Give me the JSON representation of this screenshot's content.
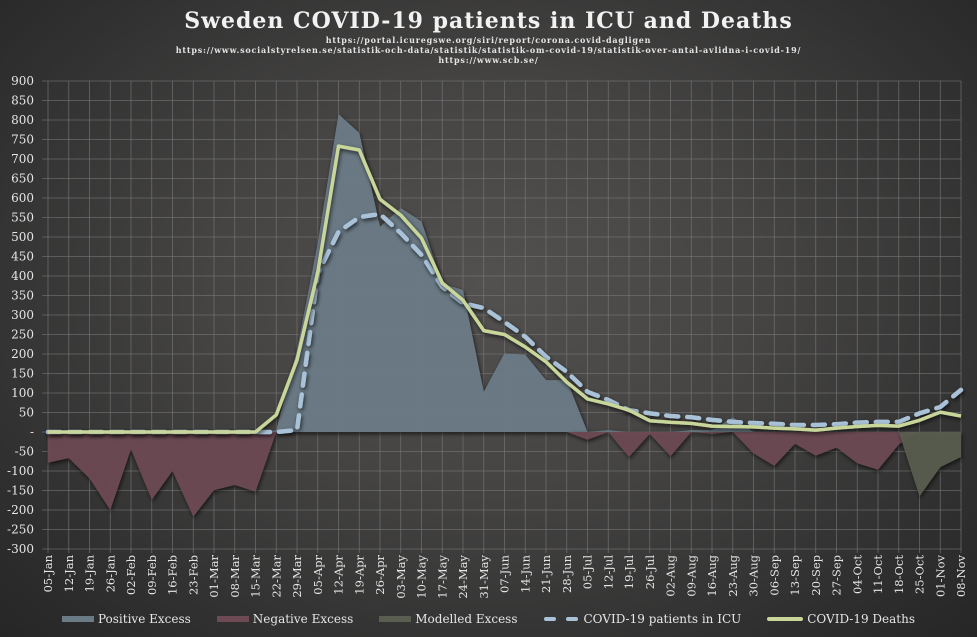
{
  "title": "Sweden COVID-19 patients in ICU and Deaths",
  "sources": [
    "https://portal.icuregswe.org/siri/report/corona.covid-dagligen",
    "https://www.socialstyrelsen.se/statistik-och-data/statistik/statistik-om-covid-19/statistik-over-antal-avlidna-i-covid-19/",
    "https://www.scb.se/"
  ],
  "colors": {
    "positive": "#6b7b86",
    "negative": "#6e4a55",
    "modelled": "#5a5e50",
    "icu": "#a9c2d8",
    "deaths": "#c8d69a",
    "grid": "#7a7a7a"
  },
  "chart_data": {
    "type": "area",
    "title": "Sweden COVID-19 patients in ICU and Deaths",
    "xlabel": "",
    "ylabel": "",
    "ylim": [
      -300,
      900
    ],
    "grid": true,
    "legend_position": "bottom",
    "y_ticks": [
      "900",
      "850",
      "800",
      "750",
      "700",
      "650",
      "600",
      "550",
      "500",
      "450",
      "400",
      "350",
      "300",
      "250",
      "200",
      "150",
      "100",
      "50",
      "-",
      "-50",
      "-100",
      "-150",
      "-200",
      "-250",
      "-300"
    ],
    "y_tick_values": [
      900,
      850,
      800,
      750,
      700,
      650,
      600,
      550,
      500,
      450,
      400,
      350,
      300,
      250,
      200,
      150,
      100,
      50,
      0,
      -50,
      -100,
      -150,
      -200,
      -250,
      -300
    ],
    "categories": [
      "05-Jan",
      "12-Jan",
      "19-Jan",
      "26-Jan",
      "02-Feb",
      "09-Feb",
      "16-Feb",
      "23-Feb",
      "01-Mar",
      "08-Mar",
      "15-Mar",
      "22-Mar",
      "29-Mar",
      "05-Apr",
      "12-Apr",
      "19-Apr",
      "26-Apr",
      "03-May",
      "10-May",
      "17-May",
      "24-May",
      "31-May",
      "07-Jun",
      "14-Jun",
      "21-Jun",
      "28-Jun",
      "05-Jul",
      "12-Jul",
      "19-Jul",
      "26-Jul",
      "02-Aug",
      "09-Aug",
      "16-Aug",
      "23-Aug",
      "30-Aug",
      "06-Sep",
      "13-Sep",
      "20-Sep",
      "27-Sep",
      "04-Oct",
      "11-Oct",
      "18-Oct",
      "25-Oct",
      "01-Nov",
      "08-Nov"
    ],
    "series": [
      {
        "name": "Positive Excess",
        "kind": "area",
        "values": [
          0,
          0,
          0,
          0,
          0,
          0,
          0,
          0,
          0,
          0,
          0,
          5,
          210,
          485,
          815,
          767,
          526,
          574,
          540,
          380,
          364,
          103,
          202,
          198,
          133,
          133,
          0,
          5,
          0,
          0,
          0,
          5,
          5,
          38,
          0,
          0,
          0,
          0,
          0,
          0,
          0,
          0,
          0,
          0,
          0
        ]
      },
      {
        "name": "Negative Excess",
        "kind": "area",
        "values": [
          -79,
          -67,
          -119,
          -200,
          -44,
          -174,
          -100,
          -217,
          -149,
          -136,
          -153,
          0,
          0,
          0,
          0,
          0,
          0,
          0,
          0,
          0,
          0,
          0,
          0,
          0,
          0,
          0,
          -20,
          0,
          -64,
          -5,
          -62,
          0,
          -5,
          0,
          -55,
          -87,
          -30,
          -61,
          -40,
          -80,
          -97,
          -32,
          0,
          0,
          0
        ]
      },
      {
        "name": "Modelled Excess",
        "kind": "area",
        "values": [
          0,
          0,
          0,
          0,
          0,
          0,
          0,
          0,
          0,
          0,
          0,
          0,
          0,
          0,
          0,
          0,
          0,
          0,
          0,
          0,
          0,
          0,
          0,
          0,
          0,
          0,
          0,
          0,
          0,
          0,
          0,
          0,
          0,
          0,
          0,
          0,
          0,
          0,
          0,
          0,
          0,
          0,
          -165,
          -90,
          -64
        ]
      },
      {
        "name": "COVID-19 patients in ICU",
        "kind": "dashed-line",
        "values": [
          0,
          0,
          0,
          0,
          0,
          0,
          0,
          0,
          0,
          0,
          0,
          0,
          5,
          407,
          513,
          551,
          559,
          510,
          454,
          372,
          330,
          318,
          282,
          244,
          193,
          154,
          103,
          82,
          56,
          48,
          41,
          38,
          31,
          26,
          23,
          21,
          18,
          18,
          20,
          24,
          26,
          26,
          48,
          64,
          108
        ]
      },
      {
        "name": "COVID-19 Deaths",
        "kind": "line",
        "values": [
          0,
          0,
          0,
          0,
          0,
          0,
          0,
          0,
          0,
          0,
          0,
          44,
          185,
          410,
          733,
          723,
          597,
          556,
          497,
          382,
          338,
          260,
          250,
          218,
          180,
          128,
          85,
          72,
          56,
          29,
          25,
          22,
          15,
          14,
          13,
          10,
          8,
          5,
          10,
          14,
          17,
          15,
          30,
          51,
          41
        ]
      }
    ]
  },
  "legend": [
    {
      "label": "Positive Excess"
    },
    {
      "label": "Negative Excess"
    },
    {
      "label": "Modelled Excess"
    },
    {
      "label": "COVID-19 patients in ICU"
    },
    {
      "label": "COVID-19 Deaths"
    }
  ]
}
